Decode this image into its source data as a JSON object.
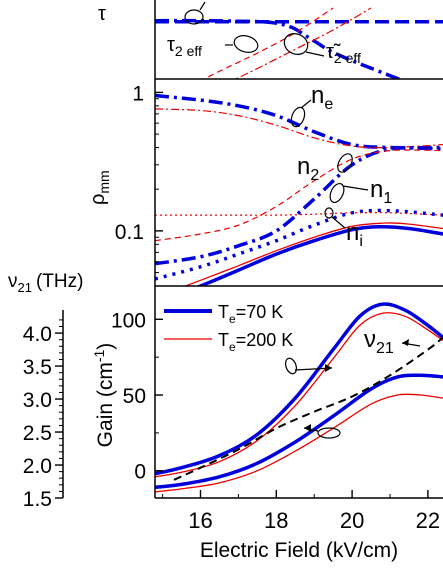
{
  "chart_data": [
    {
      "panel": "top",
      "type": "line",
      "ylabel": "τ",
      "x_range": [
        14.8,
        22.4
      ],
      "annotations": {
        "tau2eff": "τ",
        "tau2eff_sub": "2 eff",
        "tautilde2eff": "τ̃",
        "tautilde2eff_sub": "2 eff"
      },
      "series": [
        {
          "style": "blue-dash-thick",
          "x": [
            14.8,
            16,
            18,
            20,
            22.4
          ],
          "y": [
            0.55,
            0.55,
            0.55,
            0.55,
            0.55
          ]
        },
        {
          "style": "blue-dashdot-thick",
          "x": [
            14.8,
            16,
            17,
            17.8,
            18.4,
            19.0,
            19.8,
            22.4
          ],
          "y": [
            0.57,
            0.57,
            0.56,
            0.54,
            0.45,
            0.2,
            -0.1,
            -0.8
          ]
        },
        {
          "style": "red-dash-thin",
          "x": [
            15.5,
            16.5,
            17.5,
            18.5,
            19.5
          ],
          "y": [
            -0.7,
            -0.35,
            -0.02,
            0.35,
            0.8
          ]
        },
        {
          "style": "red-dashdot-thin",
          "x": [
            16.3,
            17.5,
            18.5,
            19.5,
            20.5
          ],
          "y": [
            -0.7,
            -0.3,
            0.05,
            0.4,
            0.8
          ]
        }
      ]
    },
    {
      "panel": "middle",
      "type": "line",
      "ylabel": "ρ",
      "ylabel_sub": "mm",
      "yscale": "log",
      "ylim": [
        0.04,
        1.25
      ],
      "y_tick_labels": [
        "0.1",
        "1"
      ],
      "y_ticks": [
        0.1,
        1
      ],
      "series_labels": [
        "n",
        "e",
        "n",
        "2",
        "n",
        "1",
        "n",
        "i"
      ],
      "series": [
        {
          "name": "ne",
          "style": "blue-dashdot-thick",
          "x": [
            14.8,
            16,
            17,
            18,
            19,
            20,
            21,
            22.4
          ],
          "y": [
            0.95,
            0.88,
            0.8,
            0.68,
            0.52,
            0.42,
            0.4,
            0.4
          ]
        },
        {
          "name": "ne",
          "style": "red-dashdot-thin",
          "x": [
            14.8,
            16,
            17,
            18,
            19,
            20,
            21,
            22.4
          ],
          "y": [
            0.76,
            0.74,
            0.68,
            0.58,
            0.47,
            0.41,
            0.4,
            0.42
          ]
        },
        {
          "name": "n2",
          "style": "blue-dashdot-thick",
          "x": [
            14.8,
            16,
            17,
            18,
            19,
            20,
            21,
            22.4
          ],
          "y": [
            0.058,
            0.065,
            0.078,
            0.1,
            0.17,
            0.3,
            0.39,
            0.39
          ]
        },
        {
          "name": "n2",
          "style": "red-dash-thin",
          "x": [
            14.8,
            16,
            17,
            18,
            19,
            20,
            21,
            22.4
          ],
          "y": [
            0.085,
            0.095,
            0.11,
            0.15,
            0.23,
            0.33,
            0.38,
            0.38
          ]
        },
        {
          "name": "n1",
          "style": "blue-dot-thick",
          "x": [
            14.8,
            16,
            17,
            18,
            19,
            20,
            21,
            22.4
          ],
          "y": [
            0.045,
            0.055,
            0.068,
            0.085,
            0.11,
            0.135,
            0.14,
            0.13
          ]
        },
        {
          "name": "n1",
          "style": "red-dot-thin",
          "x": [
            14.8,
            16,
            17,
            18,
            19,
            20,
            21,
            22.4
          ],
          "y": [
            0.13,
            0.13,
            0.13,
            0.13,
            0.132,
            0.135,
            0.135,
            0.13
          ]
        },
        {
          "name": "ni",
          "style": "blue-solid-thick",
          "x": [
            14.8,
            16,
            17,
            18,
            19,
            20,
            20.7,
            21.5,
            22.4
          ],
          "y": [
            0.03,
            0.04,
            0.052,
            0.068,
            0.085,
            0.102,
            0.107,
            0.104,
            0.095
          ]
        },
        {
          "name": "ni",
          "style": "red-solid-thin",
          "x": [
            14.8,
            16,
            17,
            18,
            19,
            20,
            20.9,
            21.5,
            22.4
          ],
          "y": [
            0.033,
            0.044,
            0.056,
            0.072,
            0.09,
            0.108,
            0.114,
            0.112,
            0.104
          ]
        }
      ]
    },
    {
      "panel": "bottom",
      "type": "line",
      "xlabel": "Electric Field (kV/cm)",
      "ylabel": "Gain (cm",
      "ylabel_sup": "-1",
      "ylabel_end": ")",
      "ylim": [
        -18,
        122
      ],
      "xlim": [
        14.8,
        22.4
      ],
      "x_ticks": [
        16,
        18,
        20,
        22
      ],
      "x_tick_labels": [
        "16",
        "18",
        "20",
        "22"
      ],
      "y_ticks": [
        0,
        50,
        100
      ],
      "y_tick_labels": [
        "0",
        "50",
        "100"
      ],
      "right_axis": {
        "label": "ν",
        "label_sub": "21",
        "label_unit": "(THz)",
        "tick_labels": [
          "1.5",
          "2.0",
          "2.5",
          "3.0",
          "3.5",
          "4.0"
        ],
        "range": [
          1.5,
          4.35
        ]
      },
      "legend": {
        "placement": "top-left",
        "entries": [
          {
            "label": "T",
            "label_sub": "e",
            "label_rest": "=70 K",
            "style": "blue-solid-thick"
          },
          {
            "label": "T",
            "label_sub": "e",
            "label_rest": "=200 K",
            "style": "red-solid-thin"
          }
        ]
      },
      "nu21_label": {
        "text": "ν",
        "sub": "21"
      },
      "series": [
        {
          "name": "T_e=70 K upper",
          "style": "blue-solid-thick",
          "x": [
            14.8,
            15.5,
            16.5,
            17.5,
            18.5,
            19.5,
            20.2,
            20.8,
            21.4,
            22.0,
            22.4
          ],
          "y": [
            -2,
            2,
            10,
            24,
            48,
            80,
            102,
            110,
            106,
            96,
            88
          ]
        },
        {
          "name": "T_e=200 K upper",
          "style": "red-solid-thin",
          "x": [
            14.8,
            15.5,
            16.5,
            17.5,
            18.5,
            19.5,
            20.2,
            20.8,
            21.4,
            22.0,
            22.4
          ],
          "y": [
            -4,
            -1,
            6,
            20,
            43,
            74,
            96,
            104,
            102,
            93,
            86
          ]
        },
        {
          "name": "T_e=70 K lower",
          "style": "blue-solid-thick",
          "x": [
            14.8,
            15.5,
            16.5,
            17.5,
            18.5,
            19.5,
            20.5,
            21.2,
            21.8,
            22.4
          ],
          "y": [
            -11,
            -9,
            -4,
            5,
            19,
            36,
            54,
            62,
            63,
            62
          ]
        },
        {
          "name": "T_e=200 K lower",
          "style": "red-solid-thin",
          "x": [
            14.8,
            15.5,
            16.5,
            17.5,
            18.5,
            19.5,
            20.5,
            21.2,
            21.8,
            22.4
          ],
          "y": [
            -14,
            -12,
            -8,
            0,
            13,
            28,
            44,
            50,
            50,
            48
          ]
        },
        {
          "name": "nu21",
          "style": "black-dash",
          "x": [
            15.3,
            16.0,
            17.0,
            18.0,
            19.0,
            20.0,
            21.0,
            22.0,
            22.4
          ],
          "y": [
            -6,
            2,
            14,
            28,
            39,
            49,
            63,
            80,
            88
          ]
        }
      ]
    }
  ]
}
